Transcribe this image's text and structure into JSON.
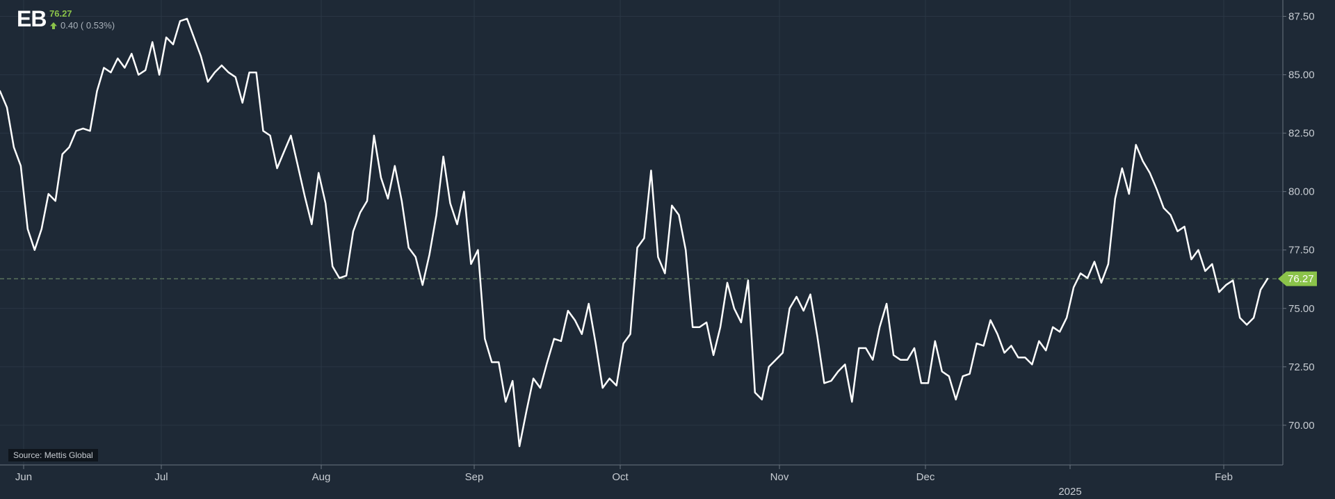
{
  "header": {
    "ticker": "EB",
    "last_price": "76.27",
    "change_text": "0.40 ( 0.53%)"
  },
  "source": "Source: Mettis Global",
  "colors": {
    "background": "#1e2936",
    "line": "#ffffff",
    "up": "#8bc34a",
    "last_price_tag": "#8bc34a",
    "grid": "#2a3644"
  },
  "chart_data": {
    "type": "line",
    "title": "",
    "xlabel": "",
    "ylabel": "",
    "ylim": [
      68.3,
      88.2
    ],
    "y_ticks": [
      70.0,
      72.5,
      75.0,
      77.5,
      80.0,
      82.5,
      85.0,
      87.5
    ],
    "y_tick_labels": [
      "70.00",
      "72.50",
      "75.00",
      "77.50",
      "80.00",
      "82.50",
      "85.00",
      "87.50"
    ],
    "x_tick_labels": [
      "Jun",
      "Jul",
      "Aug",
      "Sep",
      "Oct",
      "Nov",
      "Dec",
      "2025",
      "Feb"
    ],
    "last_value": 76.27,
    "last_value_label": "76.27",
    "grid": true,
    "series": [
      {
        "values": [
          84.3,
          83.6,
          81.9,
          81.1,
          78.4,
          77.5,
          78.4,
          79.9,
          79.6,
          81.6,
          81.9,
          82.6,
          82.7,
          82.6,
          84.3,
          85.3,
          85.1,
          85.7,
          85.3,
          85.9,
          85.0,
          85.2,
          86.4,
          85.0,
          86.6,
          86.3,
          87.3,
          87.4,
          86.6,
          85.8,
          84.7,
          85.1,
          85.4,
          85.1,
          84.9,
          83.8,
          85.1,
          85.1,
          82.6,
          82.4,
          81.0,
          81.7,
          82.4,
          81.1,
          79.8,
          78.6,
          80.8,
          79.5,
          76.8,
          76.3,
          76.4,
          78.3,
          79.1,
          79.6,
          82.4,
          80.6,
          79.7,
          81.1,
          79.6,
          77.6,
          77.2,
          76.0,
          77.3,
          79.0,
          81.5,
          79.5,
          78.6,
          80.0,
          76.9,
          77.5,
          73.7,
          72.7,
          72.7,
          71.0,
          71.9,
          69.1,
          70.6,
          72.0,
          71.6,
          72.7,
          73.7,
          73.6,
          74.9,
          74.5,
          73.9,
          75.2,
          73.5,
          71.6,
          72.0,
          71.7,
          73.5,
          73.9,
          77.6,
          78.0,
          80.9,
          77.2,
          76.5,
          79.4,
          79.0,
          77.5,
          74.2,
          74.2,
          74.4,
          73.0,
          74.2,
          76.1,
          75.0,
          74.4,
          76.2,
          71.4,
          71.1,
          72.5,
          72.8,
          73.1,
          75.0,
          75.5,
          74.9,
          75.6,
          73.8,
          71.8,
          71.9,
          72.3,
          72.6,
          71.0,
          73.3,
          73.3,
          72.8,
          74.2,
          75.2,
          73.0,
          72.8,
          72.8,
          73.3,
          71.8,
          71.8,
          73.6,
          72.3,
          72.1,
          71.1,
          72.1,
          72.2,
          73.5,
          73.4,
          74.5,
          73.9,
          73.1,
          73.4,
          72.9,
          72.9,
          72.6,
          73.6,
          73.2,
          74.2,
          74.0,
          74.6,
          75.9,
          76.5,
          76.3,
          77.0,
          76.1,
          76.9,
          79.7,
          81.0,
          79.9,
          82.0,
          81.3,
          80.8,
          80.1,
          79.3,
          79.0,
          78.3,
          78.5,
          77.1,
          77.5,
          76.6,
          76.9,
          75.7,
          76.0,
          76.2,
          74.6,
          74.3,
          74.6,
          75.8,
          76.27
        ]
      }
    ]
  }
}
